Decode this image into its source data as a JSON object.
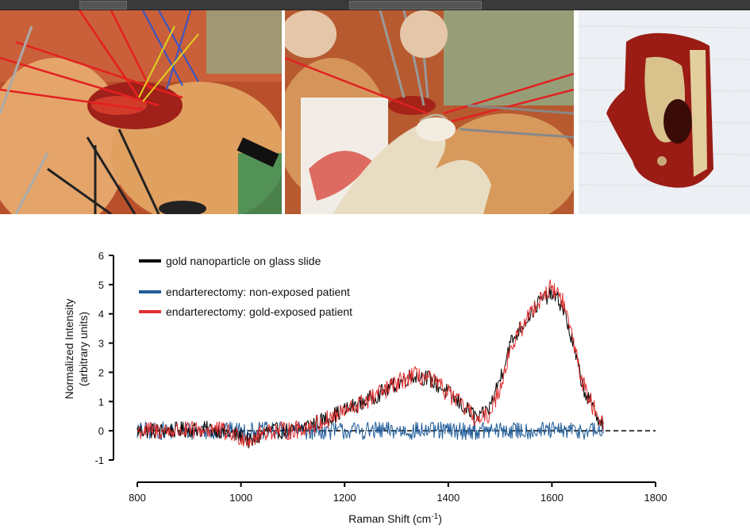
{
  "photos": [
    {
      "caption": ""
    },
    {
      "caption": ""
    },
    {
      "caption": ""
    }
  ],
  "chart_data": {
    "type": "line",
    "title": "",
    "xlabel": "Raman Shift (cm",
    "xlabel_sup": "-1",
    "xlabel_close": ")",
    "ylabel": "Normalized Intensity",
    "ylabel2": "(arbitrary units)",
    "xlim": [
      800,
      1800
    ],
    "ylim": [
      -1,
      6
    ],
    "xticks": [
      "800",
      "1000",
      "1200",
      "1400",
      "1600",
      "1800"
    ],
    "yticks": [
      "-1",
      "0",
      "1",
      "2",
      "3",
      "4",
      "5",
      "6"
    ],
    "reference_line": {
      "y": 0,
      "style": "dashed"
    },
    "legend_position": "top-left",
    "series": [
      {
        "name": "gold nanoparticle on glass slide",
        "color": "#000000",
        "x": [
          800,
          850,
          900,
          950,
          1000,
          1020,
          1050,
          1100,
          1150,
          1200,
          1250,
          1300,
          1330,
          1360,
          1400,
          1430,
          1460,
          1480,
          1500,
          1520,
          1550,
          1580,
          1600,
          1620,
          1640,
          1660,
          1680,
          1700
        ],
        "y": [
          0.0,
          0.0,
          0.05,
          0.05,
          -0.2,
          -0.4,
          0.0,
          0.0,
          0.3,
          0.7,
          1.1,
          1.6,
          1.9,
          1.8,
          1.3,
          0.8,
          0.4,
          0.8,
          1.8,
          3.0,
          3.8,
          4.5,
          4.7,
          4.3,
          3.0,
          1.5,
          0.7,
          0.2
        ]
      },
      {
        "name": "endarterectomy: non-exposed patient",
        "color": "#1f5c99",
        "x": [
          800,
          900,
          1000,
          1100,
          1200,
          1300,
          1400,
          1500,
          1600,
          1700
        ],
        "y": [
          0.0,
          0.0,
          0.0,
          0.0,
          0.0,
          0.0,
          0.0,
          0.0,
          0.0,
          0.0
        ]
      },
      {
        "name": "endarterectomy: gold-exposed patient",
        "color": "#e03030",
        "x": [
          800,
          850,
          900,
          950,
          1000,
          1020,
          1050,
          1100,
          1150,
          1200,
          1250,
          1300,
          1330,
          1360,
          1400,
          1430,
          1460,
          1480,
          1500,
          1520,
          1550,
          1580,
          1600,
          1620,
          1640,
          1660,
          1680,
          1700
        ],
        "y": [
          0.0,
          0.0,
          0.0,
          0.05,
          -0.2,
          -0.3,
          0.0,
          0.0,
          0.25,
          0.65,
          1.1,
          1.6,
          1.9,
          1.8,
          1.3,
          0.8,
          0.3,
          0.6,
          1.5,
          2.8,
          3.8,
          4.6,
          4.9,
          4.5,
          3.2,
          1.6,
          0.8,
          0.3
        ]
      }
    ]
  }
}
